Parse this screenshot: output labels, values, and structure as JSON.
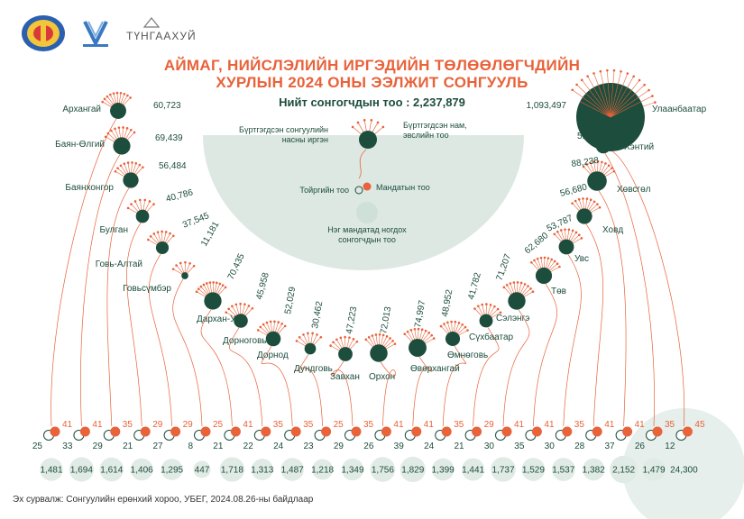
{
  "title_line1": "АЙМАГ, НИЙСЛЭЛИЙН ИРГЭДИЙН ТӨЛӨӨЛӨГЧДИЙН",
  "title_line2": "ХУРЛЫН 2024 ОНЫ ЭЭЛЖИТ СОНГУУЛЬ",
  "subtitle": "Нийт сонгогчдын тоо : 2,237,879",
  "source": "Эх сурвалж: Сонгуулийн ерөнхий хороо, УБЕГ, 2024.08.26-ны байдлаар",
  "logo_text": "ТҮНГААХУЙ",
  "legend": {
    "voters": "Бүртгэгдсэн сонгуулийн насны иргэн",
    "parties": "Бүртгэгдсэн нам, эвслийн тоо",
    "districts": "Тойргийн тоо",
    "seats": "Мандатын тоо",
    "votes_per_seat": "Нэг мандатад ногдох сонгогчдын тоо"
  },
  "colors": {
    "dark_green": "#1d4d3d",
    "orange": "#e8623a",
    "light_green": "#dde8e3",
    "white": "#ffffff"
  },
  "chart_data": {
    "type": "bubble-network",
    "total_voters": 2237879,
    "units": [
      {
        "name": "Архангай",
        "voters": 60723,
        "parties": 10,
        "districts": 25,
        "seats": 41,
        "votes_per_seat": 1481
      },
      {
        "name": "Баян-Өлгий",
        "voters": 69439,
        "parties": 9,
        "districts": 33,
        "seats": 41,
        "votes_per_seat": 1694
      },
      {
        "name": "Баянхонгор",
        "voters": 56484,
        "parties": 9,
        "districts": 29,
        "seats": 35,
        "votes_per_seat": 1614
      },
      {
        "name": "Булган",
        "voters": 40786,
        "parties": 7,
        "districts": 21,
        "seats": 29,
        "votes_per_seat": 1406
      },
      {
        "name": "Говь-Алтай",
        "voters": 37545,
        "parties": 8,
        "districts": 27,
        "seats": 29,
        "votes_per_seat": 1295
      },
      {
        "name": "Говьсүмбэр",
        "voters": 11181,
        "parties": 6,
        "districts": 8,
        "seats": 25,
        "votes_per_seat": 447
      },
      {
        "name": "Дархан-Уул",
        "voters": 70435,
        "parties": 11,
        "districts": 21,
        "seats": 41,
        "votes_per_seat": 1718
      },
      {
        "name": "Дорноговь",
        "voters": 45958,
        "parties": 8,
        "districts": 22,
        "seats": 35,
        "votes_per_seat": 1313
      },
      {
        "name": "Дорнод",
        "voters": 52029,
        "parties": 9,
        "districts": 24,
        "seats": 35,
        "votes_per_seat": 1487
      },
      {
        "name": "Дундговь",
        "voters": 30462,
        "parties": 7,
        "districts": 23,
        "seats": 25,
        "votes_per_seat": 1218
      },
      {
        "name": "Завхан",
        "voters": 47223,
        "parties": 8,
        "districts": 29,
        "seats": 35,
        "votes_per_seat": 1349
      },
      {
        "name": "Орхон",
        "voters": 72013,
        "parties": 10,
        "districts": 26,
        "seats": 41,
        "votes_per_seat": 1756
      },
      {
        "name": "Өвөрхангай",
        "voters": 74997,
        "parties": 10,
        "districts": 39,
        "seats": 41,
        "votes_per_seat": 1829
      },
      {
        "name": "Өмнөговь",
        "voters": 48952,
        "parties": 9,
        "districts": 24,
        "seats": 35,
        "votes_per_seat": 1399
      },
      {
        "name": "Сүхбаатар",
        "voters": 41782,
        "parties": 8,
        "districts": 21,
        "seats": 29,
        "votes_per_seat": 1441
      },
      {
        "name": "Сэлэнгэ",
        "voters": 71207,
        "parties": 10,
        "districts": 30,
        "seats": 41,
        "votes_per_seat": 1737
      },
      {
        "name": "Төв",
        "voters": 62680,
        "parties": 10,
        "districts": 35,
        "seats": 41,
        "votes_per_seat": 1529
      },
      {
        "name": "Увс",
        "voters": 53787,
        "parties": 9,
        "districts": 30,
        "seats": 35,
        "votes_per_seat": 1537
      },
      {
        "name": "Ховд",
        "voters": 56680,
        "parties": 9,
        "districts": 28,
        "seats": 41,
        "votes_per_seat": 1382
      },
      {
        "name": "Хөвсгөл",
        "voters": 88238,
        "parties": 10,
        "districts": 37,
        "seats": 41,
        "votes_per_seat": 2152
      },
      {
        "name": "Хэнтий",
        "voters": 51781,
        "parties": 9,
        "districts": 26,
        "seats": 35,
        "votes_per_seat": 1479
      },
      {
        "name": "Улаанбаатар",
        "voters": 1093497,
        "parties": 16,
        "districts": 12,
        "seats": 45,
        "votes_per_seat": 24300
      }
    ]
  }
}
